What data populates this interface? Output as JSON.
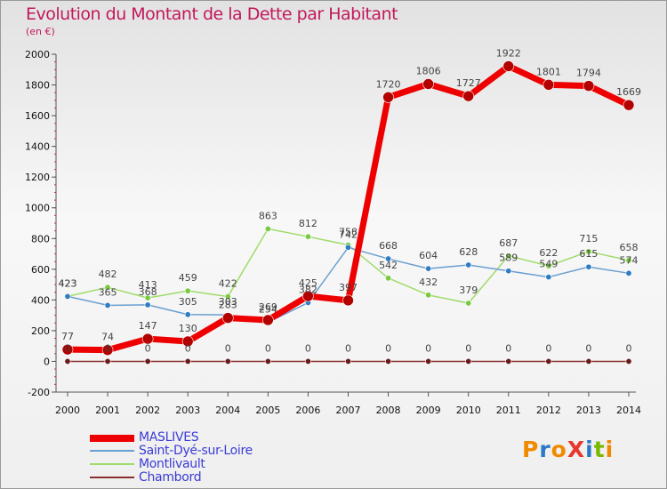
{
  "title": "Evolution du Montant de la Dette par Habitant",
  "subtitle": "(en €)",
  "logo": {
    "text": "ProXiti",
    "colors": [
      "#f08a00",
      "#2a78c8",
      "#f08a00",
      "#e8372b",
      "#2a78c8",
      "#7ab800",
      "#f08a00"
    ]
  },
  "chart_data": {
    "type": "line",
    "title": "Evolution du Montant de la Dette par Habitant",
    "ylabel": "(en €)",
    "xlabel": "",
    "x": [
      "2000",
      "2001",
      "2002",
      "2003",
      "2004",
      "2005",
      "2006",
      "2007",
      "2008",
      "2009",
      "2010",
      "2011",
      "2012",
      "2013",
      "2014"
    ],
    "yticks": [
      "-200",
      "0",
      "200",
      "400",
      "600",
      "800",
      "1000",
      "1200",
      "1400",
      "1600",
      "1800",
      "2000"
    ],
    "ylim": [
      -200,
      2000
    ],
    "grid": false,
    "legend_position": "bottom-left",
    "series": [
      {
        "name": "MASLIVES",
        "color": "#ee0000",
        "marker": "#b30000",
        "values": [
          77,
          74,
          147,
          130,
          283,
          269,
          425,
          397,
          1720,
          1806,
          1727,
          1922,
          1801,
          1794,
          1669
        ],
        "labels": [
          "77",
          "74",
          "147",
          "130",
          "283",
          "269",
          "425",
          "397",
          "1720",
          "1806",
          "1727",
          "1922",
          "1801",
          "1794",
          "1669"
        ]
      },
      {
        "name": "Saint-Dyé-sur-Loire",
        "color": "#6a9fd0",
        "marker": "#2f7cc2",
        "values": [
          423,
          365,
          368,
          305,
          303,
          254,
          382,
          742,
          668,
          604,
          628,
          589,
          549,
          615,
          574
        ],
        "labels": [
          "423",
          "365",
          "368",
          "305",
          "303",
          "254",
          "382",
          "742",
          "668",
          "604",
          "628",
          "589",
          "549",
          "615",
          "574"
        ]
      },
      {
        "name": "Montlivault",
        "color": "#9fdc6a",
        "marker": "#7ac943",
        "values": [
          423,
          482,
          413,
          459,
          422,
          863,
          812,
          758,
          542,
          432,
          379,
          687,
          622,
          715,
          658
        ],
        "labels": [
          "423",
          "482",
          "413",
          "459",
          "422",
          "863",
          "812",
          "758",
          "542",
          "432",
          "379",
          "687",
          "622",
          "715",
          "658"
        ]
      },
      {
        "name": "Chambord",
        "color": "#8b2e2e",
        "marker": "#6b1a1a",
        "values": [
          0,
          0,
          0,
          0,
          0,
          0,
          0,
          0,
          0,
          0,
          0,
          0,
          0,
          0,
          0
        ],
        "labels": [
          "0",
          "0",
          "0",
          "0",
          "0",
          "0",
          "0",
          "0",
          "0",
          "0",
          "0",
          "0",
          "0",
          "0",
          "0"
        ]
      }
    ]
  }
}
